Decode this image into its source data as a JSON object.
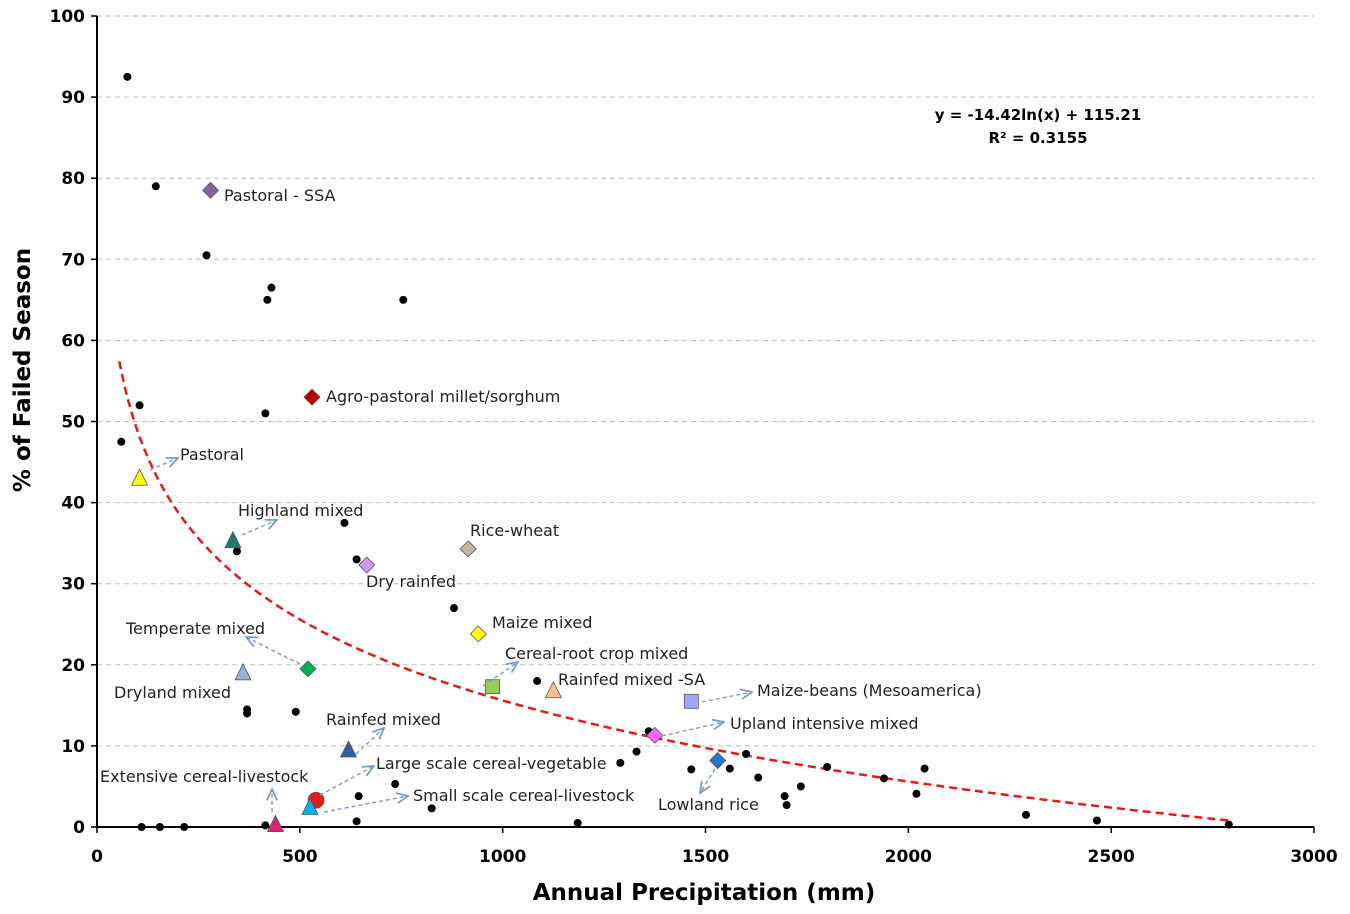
{
  "chart_data": {
    "type": "scatter",
    "title": "",
    "xlabel": "Annual Precipitation (mm)",
    "ylabel": "% of Failed Season",
    "xlim": [
      0,
      3000
    ],
    "ylim": [
      0,
      100
    ],
    "xticks": [
      "0",
      "500",
      "1000",
      "1500",
      "2000",
      "2500",
      "3000"
    ],
    "yticks": [
      "0",
      "10",
      "20",
      "30",
      "40",
      "50",
      "60",
      "70",
      "80",
      "90",
      "100"
    ],
    "grid": "horizontal dashed",
    "trendline": {
      "type": "logarithmic",
      "a": -14.42,
      "b": 115.21,
      "x_range": [
        55,
        2800
      ],
      "color": "#e31a1c",
      "equation_label": "y = -14.42ln(x) + 115.21",
      "r2_label": "R² = 0.3155"
    },
    "points": [
      {
        "x": 75,
        "y": 92.5
      },
      {
        "x": 145,
        "y": 79
      },
      {
        "x": 270,
        "y": 70.5
      },
      {
        "x": 430,
        "y": 66.5
      },
      {
        "x": 420,
        "y": 65
      },
      {
        "x": 755,
        "y": 65
      },
      {
        "x": 105,
        "y": 52
      },
      {
        "x": 415,
        "y": 51
      },
      {
        "x": 60,
        "y": 47.5
      },
      {
        "x": 610,
        "y": 37.5
      },
      {
        "x": 345,
        "y": 34
      },
      {
        "x": 640,
        "y": 33
      },
      {
        "x": 880,
        "y": 27
      },
      {
        "x": 1085,
        "y": 18
      },
      {
        "x": 370,
        "y": 14.5
      },
      {
        "x": 370,
        "y": 14
      },
      {
        "x": 490,
        "y": 14.2
      },
      {
        "x": 1360,
        "y": 11.8
      },
      {
        "x": 1330,
        "y": 9.3
      },
      {
        "x": 1290,
        "y": 7.9
      },
      {
        "x": 1465,
        "y": 7.1
      },
      {
        "x": 1560,
        "y": 7.2
      },
      {
        "x": 1600,
        "y": 9.0
      },
      {
        "x": 1630,
        "y": 6.1
      },
      {
        "x": 1800,
        "y": 7.4
      },
      {
        "x": 1695,
        "y": 3.8
      },
      {
        "x": 1700,
        "y": 2.7
      },
      {
        "x": 1735,
        "y": 5.0
      },
      {
        "x": 1940,
        "y": 6.0
      },
      {
        "x": 2040,
        "y": 7.2
      },
      {
        "x": 2020,
        "y": 4.1
      },
      {
        "x": 2290,
        "y": 1.5
      },
      {
        "x": 2465,
        "y": 0.8
      },
      {
        "x": 2790,
        "y": 0.3
      },
      {
        "x": 735,
        "y": 5.3
      },
      {
        "x": 645,
        "y": 3.8
      },
      {
        "x": 825,
        "y": 2.3
      },
      {
        "x": 640,
        "y": 0.7
      },
      {
        "x": 1185,
        "y": 0.5
      },
      {
        "x": 415,
        "y": 0.2
      },
      {
        "x": 110,
        "y": 0
      },
      {
        "x": 155,
        "y": 0
      },
      {
        "x": 215,
        "y": 0
      }
    ],
    "systems": [
      {
        "name": "Pastoral - SSA",
        "x": 280,
        "y": 78.5,
        "marker": "diamond",
        "color": "#8064a2"
      },
      {
        "name": "Agro-pastoral millet/sorghum",
        "x": 530,
        "y": 53,
        "marker": "diamond",
        "color": "#c00000"
      },
      {
        "name": "Pastoral",
        "x": 105,
        "y": 43,
        "marker": "triangle",
        "color": "#ffff00"
      },
      {
        "name": "Highland mixed",
        "x": 335,
        "y": 35.3,
        "marker": "triangle",
        "color": "#1f7a6e"
      },
      {
        "name": "Rice-wheat",
        "x": 915,
        "y": 34.3,
        "marker": "diamond",
        "color": "#c4b89a"
      },
      {
        "name": "Dry rainfed",
        "x": 665,
        "y": 32.3,
        "marker": "diamond",
        "color": "#cc99ff"
      },
      {
        "name": "Maize mixed",
        "x": 940,
        "y": 23.8,
        "marker": "diamond",
        "color": "#ffff00"
      },
      {
        "name": "Temperate mixed",
        "x": 520,
        "y": 19.5,
        "marker": "diamond",
        "color": "#00b050"
      },
      {
        "name": "Dryland mixed",
        "x": 360,
        "y": 19,
        "marker": "triangle",
        "color": "#95b3d7"
      },
      {
        "name": "Cereal-root crop mixed",
        "x": 975,
        "y": 17.3,
        "marker": "square",
        "color": "#92d050"
      },
      {
        "name": "Rainfed mixed -SA",
        "x": 1125,
        "y": 16.8,
        "marker": "triangle",
        "color": "#fac090"
      },
      {
        "name": "Maize-beans (Mesoamerica)",
        "x": 1465,
        "y": 15.5,
        "marker": "square",
        "color": "#a5a5f5"
      },
      {
        "name": "Upland intensive mixed",
        "x": 1375,
        "y": 11.3,
        "marker": "diamond",
        "color": "#ff66ff"
      },
      {
        "name": "Rainfed mixed",
        "x": 620,
        "y": 9.5,
        "marker": "triangle",
        "color": "#2e5ea8"
      },
      {
        "name": "Lowland rice",
        "x": 1530,
        "y": 8.2,
        "marker": "diamond",
        "color": "#1f78c8"
      },
      {
        "name": "Large scale cereal-vegetable",
        "x": 540,
        "y": 3.3,
        "marker": "circle",
        "color": "#e31a1c"
      },
      {
        "name": "Small scale cereal-livestock",
        "x": 525,
        "y": 2.4,
        "marker": "triangle",
        "color": "#00b0f0"
      },
      {
        "name": "Extensive cereal-livestock",
        "x": 440,
        "y": 0.3,
        "marker": "triangle",
        "color": "#e0207a"
      }
    ]
  }
}
